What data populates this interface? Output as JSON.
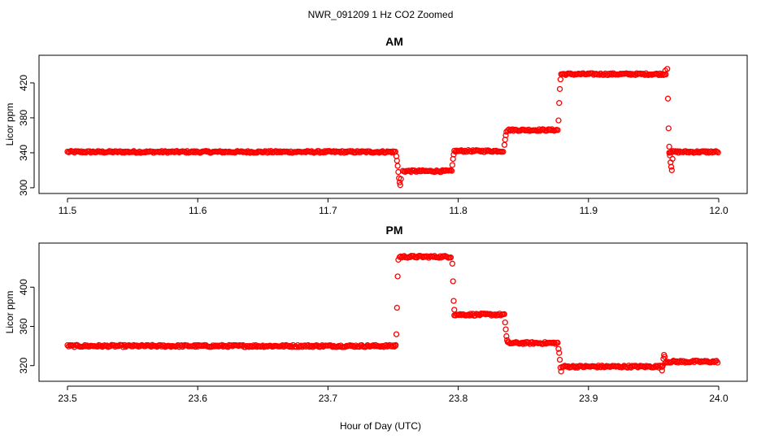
{
  "title": "NWR_091209  1 Hz CO2 Zoomed",
  "xlabel": "Hour of Day (UTC)",
  "colors": {
    "points": "#ff0000",
    "axis": "#000000",
    "background": "#ffffff"
  },
  "chart_data": [
    {
      "type": "scatter",
      "panel": "am",
      "title": "AM",
      "xlabel": "",
      "ylabel": "Licor ppm",
      "xlim": [
        11.5,
        12.0
      ],
      "ylim": [
        299,
        446
      ],
      "xticks": [
        11.5,
        11.6,
        11.7,
        11.8,
        11.9,
        12.0
      ],
      "xtick_labels": [
        "11.5",
        "11.6",
        "11.7",
        "11.8",
        "11.9",
        "12.0"
      ],
      "yticks": [
        300,
        340,
        380,
        420
      ],
      "ytick_labels": [
        "300",
        "340",
        "380",
        "420"
      ],
      "segments": [
        {
          "x_start": 11.5,
          "x_end": 11.752,
          "value": 341
        },
        {
          "x_start": 11.7575,
          "x_end": 11.795,
          "value": 319
        },
        {
          "x_start": 11.797,
          "x_end": 11.835,
          "value": 342
        },
        {
          "x_start": 11.838,
          "x_end": 11.877,
          "value": 366
        },
        {
          "x_start": 11.879,
          "x_end": 11.96,
          "value": 430
        },
        {
          "x_start": 11.962,
          "x_end": 12.0,
          "value": 341
        }
      ],
      "transitions": [
        {
          "x": [
            11.7525,
            11.753,
            11.7535,
            11.754,
            11.7545,
            11.755,
            11.7555,
            11.756
          ],
          "y": [
            336,
            331,
            325,
            318,
            311,
            306,
            303,
            310
          ]
        },
        {
          "x": [
            11.7955,
            11.796,
            11.7965
          ],
          "y": [
            326,
            333,
            338
          ]
        },
        {
          "x": [
            11.8355,
            11.836,
            11.8365,
            11.837
          ],
          "y": [
            349,
            355,
            360,
            364
          ]
        },
        {
          "x": [
            11.877,
            11.8775,
            11.878,
            11.8785
          ],
          "y": [
            377,
            397,
            413,
            424
          ]
        },
        {
          "x": [
            11.959,
            11.9605,
            11.961,
            11.9615,
            11.962,
            11.9625,
            11.963,
            11.9635,
            11.964,
            11.9645
          ],
          "y": [
            434,
            436,
            402,
            368,
            347,
            337,
            329,
            324,
            320,
            333
          ]
        }
      ]
    },
    {
      "type": "scatter",
      "panel": "pm",
      "title": "PM",
      "xlabel": "Hour of Day (UTC)",
      "ylabel": "Licor ppm",
      "xlim": [
        23.5,
        24.0
      ],
      "ylim": [
        309,
        440
      ],
      "xticks": [
        23.5,
        23.6,
        23.7,
        23.8,
        23.9,
        24.0
      ],
      "xtick_labels": [
        "23.5",
        "23.6",
        "23.7",
        "23.8",
        "23.9",
        "24.0"
      ],
      "yticks": [
        320,
        360,
        400
      ],
      "ytick_labels": [
        "320",
        "360",
        "400"
      ],
      "segments": [
        {
          "x_start": 23.5,
          "x_end": 23.752,
          "value": 340
        },
        {
          "x_start": 23.755,
          "x_end": 23.795,
          "value": 431
        },
        {
          "x_start": 23.797,
          "x_end": 23.836,
          "value": 372
        },
        {
          "x_start": 23.838,
          "x_end": 23.877,
          "value": 343
        },
        {
          "x_start": 23.88,
          "x_end": 23.957,
          "value": 319
        },
        {
          "x_start": 23.959,
          "x_end": 24.0,
          "value": 324
        }
      ],
      "transitions": [
        {
          "x": [
            23.752,
            23.7525,
            23.753,
            23.7535,
            23.754
          ],
          "y": [
            341,
            352,
            379,
            411,
            428
          ]
        },
        {
          "x": [
            23.7955,
            23.796,
            23.7965,
            23.797
          ],
          "y": [
            424,
            406,
            386,
            377
          ]
        },
        {
          "x": [
            23.836,
            23.8365,
            23.837,
            23.8375
          ],
          "y": [
            364,
            357,
            350,
            346
          ]
        },
        {
          "x": [
            23.877,
            23.8775,
            23.878,
            23.8785,
            23.879
          ],
          "y": [
            337,
            333,
            326,
            318,
            314
          ]
        },
        {
          "x": [
            23.9565,
            23.957,
            23.9575,
            23.958,
            23.9585
          ],
          "y": [
            315,
            320,
            327,
            331,
            329
          ]
        }
      ]
    }
  ]
}
